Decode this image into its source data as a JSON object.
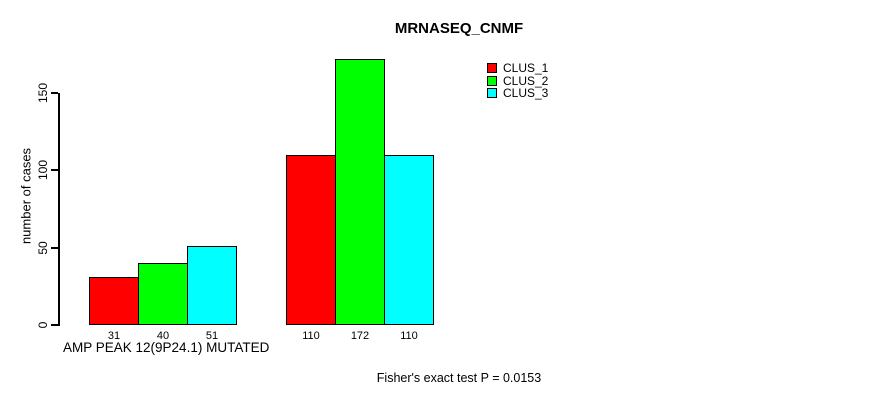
{
  "chart_data": {
    "type": "bar",
    "title": "MRNASEQ_CNMF",
    "ylabel": "number of cases",
    "xlabel": "AMP PEAK 12(9P24.1) MUTATED",
    "yticks": [
      0,
      50,
      100,
      150
    ],
    "ylim": [
      0,
      172
    ],
    "grid": false,
    "bar_value_labels_shown": true,
    "legend_position": "top-right",
    "categories": [
      "AMP PEAK 12(9P24.1) MUTATED",
      ""
    ],
    "series": [
      {
        "name": "CLUS_1",
        "color": "#ff0000",
        "values": [
          31,
          110
        ]
      },
      {
        "name": "CLUS_2",
        "color": "#00ff00",
        "values": [
          40,
          172
        ]
      },
      {
        "name": "CLUS_3",
        "color": "#00ffff",
        "values": [
          51,
          110
        ]
      }
    ],
    "annotation": "Fisher's exact test P = 0.0153",
    "axis_color": "#000000",
    "bar_border_color": "#000000"
  }
}
